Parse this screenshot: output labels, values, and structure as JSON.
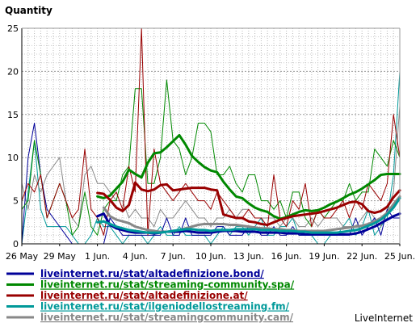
{
  "chart_data": {
    "type": "line",
    "ylabel": "Quantity",
    "ylim": [
      0,
      25
    ],
    "yticks": [
      0,
      5,
      10,
      15,
      20,
      25
    ],
    "x": [
      0,
      1,
      2,
      3,
      4,
      5,
      6,
      7,
      8,
      9,
      10,
      11,
      12,
      13,
      14,
      15,
      16,
      17,
      18,
      19,
      20,
      21,
      22,
      23,
      24,
      25,
      26,
      27,
      28,
      29,
      30,
      31,
      32,
      33,
      34,
      35,
      36,
      37,
      38,
      39,
      40,
      41,
      42,
      43,
      44,
      45,
      46,
      47,
      48,
      49,
      50,
      51,
      52,
      53,
      54,
      55,
      56,
      57,
      58,
      59,
      60
    ],
    "xlim": [
      0,
      60
    ],
    "xtick_positions": [
      0,
      6,
      12,
      18,
      24,
      30,
      36,
      42,
      48,
      54,
      60
    ],
    "xtick_labels": [
      "26 May",
      "29 May",
      "1 Jun.",
      "4 Jun.",
      "7 Jun.",
      "10 Jun.",
      "13 Jun.",
      "16 Jun.",
      "19 Jun.",
      "22 Jun.",
      "25 Jun."
    ],
    "grid": true,
    "legend_position": "bottom",
    "watermark": "LiveInternet",
    "series": [
      {
        "name": "liveinternet.ru/stat/ilgeniodellostreaming.fm/",
        "color": "#009999",
        "width": 1,
        "values": [
          0,
          6,
          12,
          4,
          2,
          2,
          2,
          2,
          1,
          0,
          0,
          1,
          3,
          2,
          2,
          1,
          0,
          1,
          1,
          1,
          0,
          1,
          2,
          1,
          1,
          2,
          1,
          1,
          1,
          1,
          0,
          1,
          2,
          1,
          2,
          2,
          1,
          2,
          3,
          1,
          1,
          2,
          2,
          3,
          1,
          1,
          1,
          0,
          0,
          1,
          1,
          2,
          3,
          1,
          2,
          4,
          1,
          2,
          3,
          8,
          20
        ]
      },
      {
        "name": "liveinternet.ru/stat/streamingcommunity.cam/",
        "color": "#888888",
        "width": 1,
        "values": [
          7,
          4,
          8,
          6,
          8,
          9,
          10,
          5,
          3,
          2,
          8,
          9,
          7,
          7,
          6,
          5,
          5,
          3,
          4,
          3,
          3,
          2,
          4,
          3,
          3,
          4,
          5,
          4,
          3,
          3,
          2,
          3,
          3,
          4,
          3,
          4,
          4,
          3,
          3,
          3,
          3,
          2,
          3,
          3,
          2,
          2,
          3,
          2,
          3,
          3,
          3,
          2,
          2,
          2,
          3,
          4,
          3,
          2,
          4,
          6,
          16
        ]
      },
      {
        "name": "liveinternet.ru/stat/altadefinizione.bond/",
        "color": "#000099",
        "width": 1,
        "values": [
          0,
          10,
          14,
          8,
          4,
          3,
          2,
          1,
          0,
          0,
          0,
          0,
          0,
          0,
          3,
          2,
          1,
          1,
          1,
          1,
          1,
          1,
          1,
          3,
          1,
          1,
          3,
          1,
          1,
          1,
          1,
          2,
          2,
          1,
          1,
          1,
          2,
          2,
          1,
          1,
          2,
          1,
          1,
          2,
          1,
          1,
          1,
          1,
          1,
          1,
          1,
          1,
          1,
          3,
          1,
          2,
          3,
          1,
          4,
          3,
          3
        ]
      },
      {
        "name": "liveinternet.ru/stat/streaming-community.spa/",
        "color": "#008800",
        "width": 1,
        "values": [
          4,
          5,
          12,
          8,
          3,
          5,
          7,
          5,
          1,
          2,
          6,
          2,
          1,
          4,
          5,
          5,
          8,
          9,
          18,
          18,
          7,
          7,
          10,
          19,
          12,
          11,
          8,
          10,
          14,
          14,
          13,
          8,
          8,
          9,
          7,
          6,
          8,
          8,
          5,
          5,
          4,
          5,
          3,
          6,
          6,
          3,
          2,
          4,
          3,
          4,
          5,
          5,
          7,
          5,
          6,
          6,
          11,
          10,
          9,
          12,
          10
        ]
      },
      {
        "name": "liveinternet.ru/stat/altadefinizione.at/",
        "color": "#990000",
        "width": 1,
        "values": [
          5,
          7,
          6,
          8,
          3,
          5,
          7,
          5,
          3,
          4,
          11,
          4,
          3,
          1,
          5,
          6,
          4,
          9,
          6,
          25,
          1,
          11,
          7,
          6,
          5,
          6,
          7,
          6,
          5,
          5,
          4,
          6,
          5,
          4,
          3,
          3,
          4,
          3,
          3,
          2,
          8,
          3,
          2,
          5,
          4,
          7,
          2,
          4,
          3,
          3,
          4,
          5,
          3,
          5,
          4,
          7,
          6,
          5,
          7,
          15,
          10
        ]
      },
      {
        "name": "liveinternet.ru/stat/streamingcommunity.cam/",
        "color": "#888888",
        "width": 3,
        "start": 13,
        "values": [
          null,
          null,
          null,
          null,
          null,
          null,
          null,
          null,
          null,
          null,
          null,
          null,
          null,
          4.2,
          3.2,
          2.8,
          2.6,
          2.4,
          2.0,
          1.8,
          1.6,
          1.5,
          1.4,
          1.4,
          1.5,
          1.6,
          1.8,
          2.0,
          2.2,
          2.3,
          2.3,
          2.3,
          2.3,
          2.2,
          2.2,
          2.1,
          2.0,
          1.9,
          1.8,
          1.8,
          1.7,
          1.7,
          1.6,
          1.6,
          1.5,
          1.5,
          1.5,
          1.5,
          1.5,
          1.6,
          1.7,
          1.8,
          1.9,
          2.0,
          2.1,
          2.3,
          2.6,
          3.0,
          3.6,
          4.6,
          5.5
        ]
      },
      {
        "name": "liveinternet.ru/stat/altadefinizione.bond/",
        "color": "#000099",
        "width": 3,
        "values": [
          null,
          null,
          null,
          null,
          null,
          null,
          null,
          null,
          null,
          null,
          null,
          null,
          3.2,
          3.5,
          2.2,
          1.8,
          1.6,
          1.4,
          1.3,
          1.3,
          1.3,
          1.2,
          1.3,
          1.4,
          1.4,
          1.4,
          1.5,
          1.4,
          1.3,
          1.3,
          1.3,
          1.4,
          1.5,
          1.5,
          1.5,
          1.4,
          1.4,
          1.4,
          1.3,
          1.3,
          1.3,
          1.3,
          1.2,
          1.2,
          1.2,
          1.1,
          1.1,
          1.1,
          1.1,
          1.1,
          1.1,
          1.1,
          1.1,
          1.2,
          1.4,
          1.7,
          2.0,
          2.4,
          2.8,
          3.2,
          3.5
        ]
      },
      {
        "name": "liveinternet.ru/stat/ilgeniodellostreaming.fm/",
        "color": "#009999",
        "width": 3,
        "values": [
          null,
          null,
          null,
          null,
          null,
          null,
          null,
          null,
          null,
          null,
          null,
          null,
          2.5,
          2.6,
          2.3,
          2.0,
          1.8,
          1.6,
          1.5,
          1.4,
          1.3,
          1.3,
          1.3,
          1.4,
          1.5,
          1.6,
          1.7,
          1.7,
          1.6,
          1.6,
          1.5,
          1.6,
          1.6,
          1.6,
          1.7,
          1.7,
          1.7,
          1.7,
          1.6,
          1.6,
          1.6,
          1.5,
          1.5,
          1.5,
          1.4,
          1.4,
          1.3,
          1.3,
          1.3,
          1.3,
          1.3,
          1.4,
          1.5,
          1.6,
          1.8,
          2.1,
          2.4,
          2.8,
          3.4,
          4.2,
          5.3
        ]
      },
      {
        "name": "liveinternet.ru/stat/streaming-community.spa/",
        "color": "#008800",
        "width": 3,
        "values": [
          null,
          null,
          null,
          null,
          null,
          null,
          null,
          null,
          null,
          null,
          null,
          null,
          5.5,
          5.3,
          5.6,
          6.4,
          7.2,
          8.6,
          8.1,
          7.7,
          9.4,
          10.5,
          10.6,
          11.2,
          11.9,
          12.6,
          11.5,
          10.2,
          9.5,
          8.9,
          8.5,
          8.3,
          7.2,
          6.3,
          5.5,
          5.3,
          4.7,
          4.2,
          3.9,
          3.7,
          3.2,
          2.9,
          3.1,
          3.4,
          3.7,
          3.9,
          3.8,
          3.9,
          4.2,
          4.6,
          4.9,
          5.3,
          5.7,
          6.0,
          6.4,
          6.9,
          7.4,
          8.0,
          8.1,
          8.1,
          8.1
        ]
      },
      {
        "name": "liveinternet.ru/stat/altadefinizione.at/",
        "color": "#990000",
        "width": 3,
        "values": [
          null,
          null,
          null,
          null,
          null,
          null,
          null,
          null,
          null,
          null,
          null,
          null,
          5.9,
          5.8,
          5.1,
          4.2,
          3.8,
          4.5,
          7.1,
          6.3,
          6.1,
          6.3,
          6.8,
          6.9,
          6.2,
          6.3,
          6.4,
          6.5,
          6.5,
          6.5,
          6.3,
          6.2,
          3.4,
          3.2,
          3.0,
          3.0,
          2.6,
          2.5,
          2.3,
          2.2,
          2.5,
          2.8,
          3.0,
          3.2,
          3.3,
          3.4,
          3.5,
          3.6,
          3.8,
          4.0,
          4.2,
          4.5,
          4.8,
          4.9,
          4.6,
          3.8,
          3.6,
          3.8,
          4.3,
          5.4,
          6.2
        ]
      }
    ],
    "legend": [
      {
        "label": "liveinternet.ru/stat/altadefinizione.bond/",
        "color": "#000099"
      },
      {
        "label": "liveinternet.ru/stat/streaming-community.spa/",
        "color": "#008800"
      },
      {
        "label": "liveinternet.ru/stat/altadefinizione.at/",
        "color": "#990000"
      },
      {
        "label": "liveinternet.ru/stat/ilgeniodellostreaming.fm/",
        "color": "#009999"
      },
      {
        "label": "liveinternet.ru/stat/streamingcommunity.cam/",
        "color": "#888888"
      }
    ]
  }
}
